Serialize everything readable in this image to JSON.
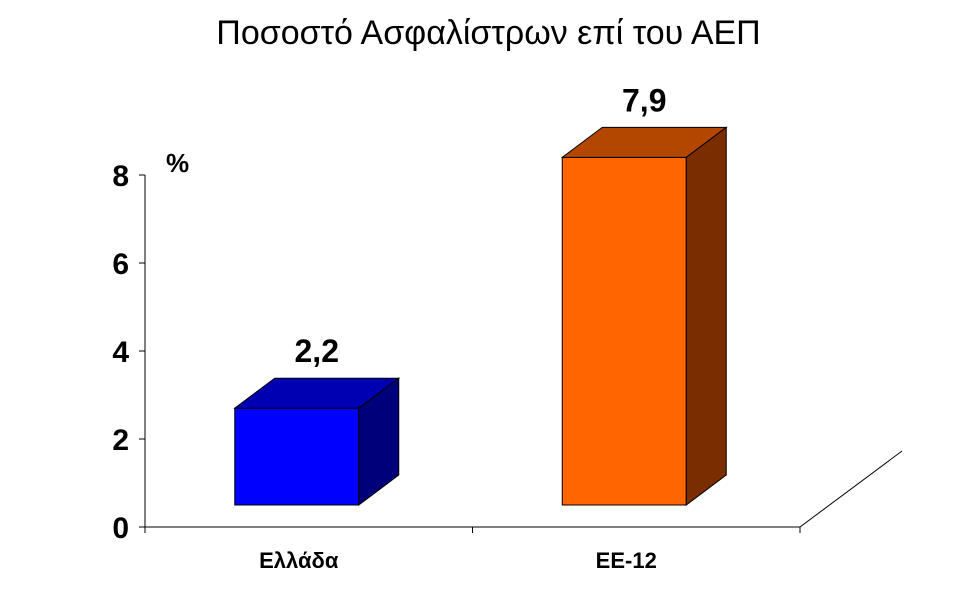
{
  "chart_data": {
    "type": "bar",
    "title": "Ποσοστό Ασφαλίστρων επί του ΑΕΠ",
    "unit_label": "%",
    "categories": [
      "Ελλάδα",
      "ΕΕ-12"
    ],
    "values": [
      2.2,
      7.9
    ],
    "value_labels": [
      "2,2",
      "7,9"
    ],
    "y_ticks": [
      "0",
      "2",
      "4",
      "6",
      "8"
    ],
    "ylim": [
      0,
      8
    ],
    "grid": false,
    "style": "3d-column",
    "colors": [
      {
        "front": "#0000ff",
        "top": "#0000b3",
        "side": "#00007a"
      },
      {
        "front": "#ff6600",
        "top": "#b34700",
        "side": "#7a2e00"
      }
    ]
  }
}
